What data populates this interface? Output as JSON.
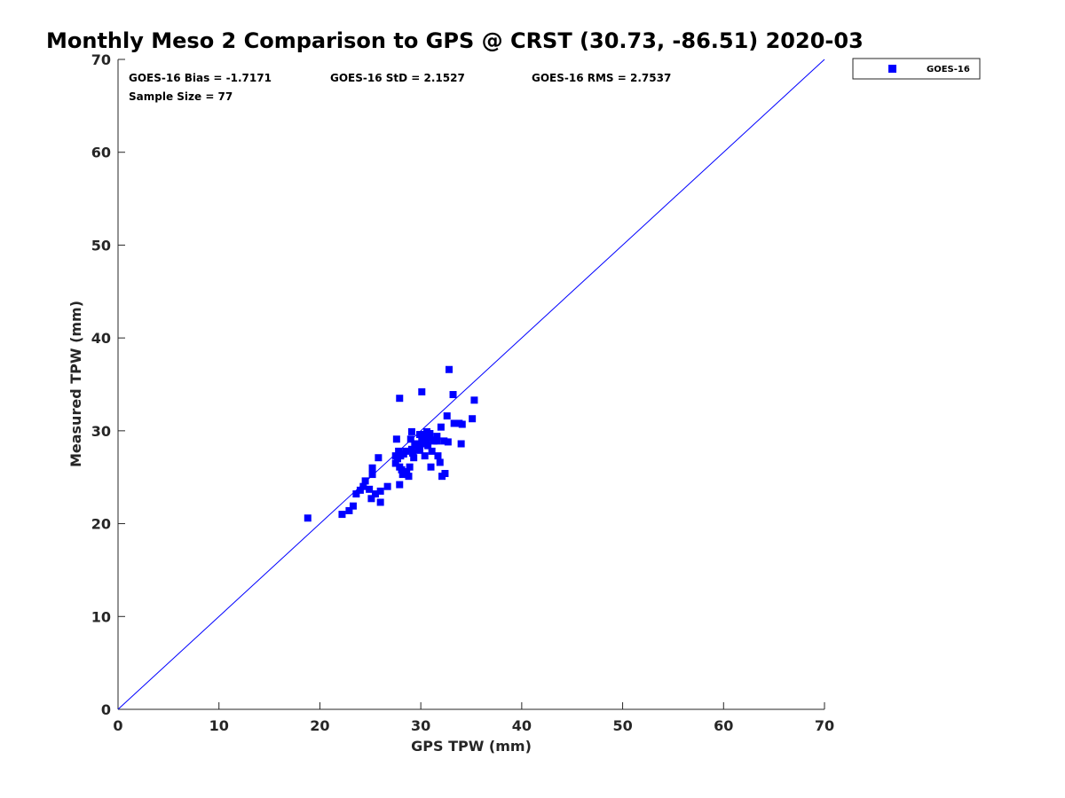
{
  "chart_data": {
    "type": "scatter",
    "title": "Monthly Meso 2 Comparison to GPS @ CRST (30.73, -86.51) 2020-03",
    "xlabel": "GPS TPW (mm)",
    "ylabel": "Measured TPW (mm)",
    "xlim": [
      0,
      70
    ],
    "ylim": [
      0,
      70
    ],
    "xticks": [
      0,
      10,
      20,
      30,
      40,
      50,
      60,
      70
    ],
    "yticks": [
      0,
      10,
      20,
      30,
      40,
      50,
      60,
      70
    ],
    "grid": false,
    "legend_position": "top-right-outside",
    "stats": {
      "bias": "GOES-16 Bias = -1.7171",
      "std": "GOES-16 StD = 2.1527",
      "rms": "GOES-16 RMS = 2.7537",
      "sample_size": "Sample Size = 77"
    },
    "reference_line": {
      "type": "one-to-one",
      "color": "#0000ff"
    },
    "series": [
      {
        "name": "GOES-16",
        "color": "#0000ff",
        "marker": "square",
        "points": [
          [
            18.8,
            20.6
          ],
          [
            22.2,
            21.0
          ],
          [
            22.9,
            21.4
          ],
          [
            23.3,
            21.9
          ],
          [
            23.6,
            23.2
          ],
          [
            24.0,
            23.6
          ],
          [
            24.3,
            24.0
          ],
          [
            24.5,
            24.6
          ],
          [
            24.9,
            23.7
          ],
          [
            25.1,
            22.7
          ],
          [
            25.2,
            25.3
          ],
          [
            25.2,
            26.0
          ],
          [
            25.5,
            23.2
          ],
          [
            25.8,
            27.1
          ],
          [
            26.0,
            22.3
          ],
          [
            26.0,
            23.5
          ],
          [
            26.7,
            24.0
          ],
          [
            27.5,
            26.5
          ],
          [
            27.5,
            27.3
          ],
          [
            27.6,
            29.1
          ],
          [
            27.8,
            27.8
          ],
          [
            27.9,
            26.1
          ],
          [
            27.9,
            24.2
          ],
          [
            28.0,
            27.3
          ],
          [
            28.1,
            25.8
          ],
          [
            28.2,
            25.3
          ],
          [
            28.5,
            27.8
          ],
          [
            28.6,
            25.6
          ],
          [
            28.8,
            25.1
          ],
          [
            28.9,
            26.1
          ],
          [
            29.0,
            29.1
          ],
          [
            29.1,
            28.0
          ],
          [
            29.1,
            29.9
          ],
          [
            29.2,
            27.6
          ],
          [
            29.3,
            27.1
          ],
          [
            29.6,
            28.6
          ],
          [
            29.9,
            29.6
          ],
          [
            29.9,
            27.9
          ],
          [
            30.1,
            29.1
          ],
          [
            30.2,
            28.6
          ],
          [
            30.3,
            28.9
          ],
          [
            30.4,
            29.6
          ],
          [
            30.4,
            27.3
          ],
          [
            30.6,
            29.9
          ],
          [
            30.7,
            28.4
          ],
          [
            30.8,
            29.3
          ],
          [
            31.0,
            26.1
          ],
          [
            31.1,
            27.8
          ],
          [
            31.3,
            28.9
          ],
          [
            31.6,
            28.9
          ],
          [
            31.6,
            29.4
          ],
          [
            31.7,
            27.3
          ],
          [
            31.9,
            26.6
          ],
          [
            32.0,
            30.4
          ],
          [
            32.1,
            25.1
          ],
          [
            32.3,
            28.9
          ],
          [
            32.4,
            25.4
          ],
          [
            32.6,
            31.6
          ],
          [
            32.7,
            28.8
          ],
          [
            33.2,
            33.9
          ],
          [
            33.3,
            30.8
          ],
          [
            33.8,
            30.8
          ],
          [
            34.0,
            28.6
          ],
          [
            34.1,
            30.7
          ],
          [
            35.1,
            31.3
          ],
          [
            35.3,
            33.3
          ],
          [
            32.8,
            36.6
          ],
          [
            30.1,
            34.2
          ],
          [
            27.9,
            33.5
          ],
          [
            29.4,
            28.4
          ],
          [
            30.6,
            28.9
          ],
          [
            27.7,
            27.0
          ],
          [
            30.2,
            29.5
          ],
          [
            28.3,
            27.5
          ],
          [
            31.4,
            29.0
          ],
          [
            29.8,
            28.2
          ],
          [
            30.9,
            29.7
          ]
        ]
      }
    ]
  }
}
